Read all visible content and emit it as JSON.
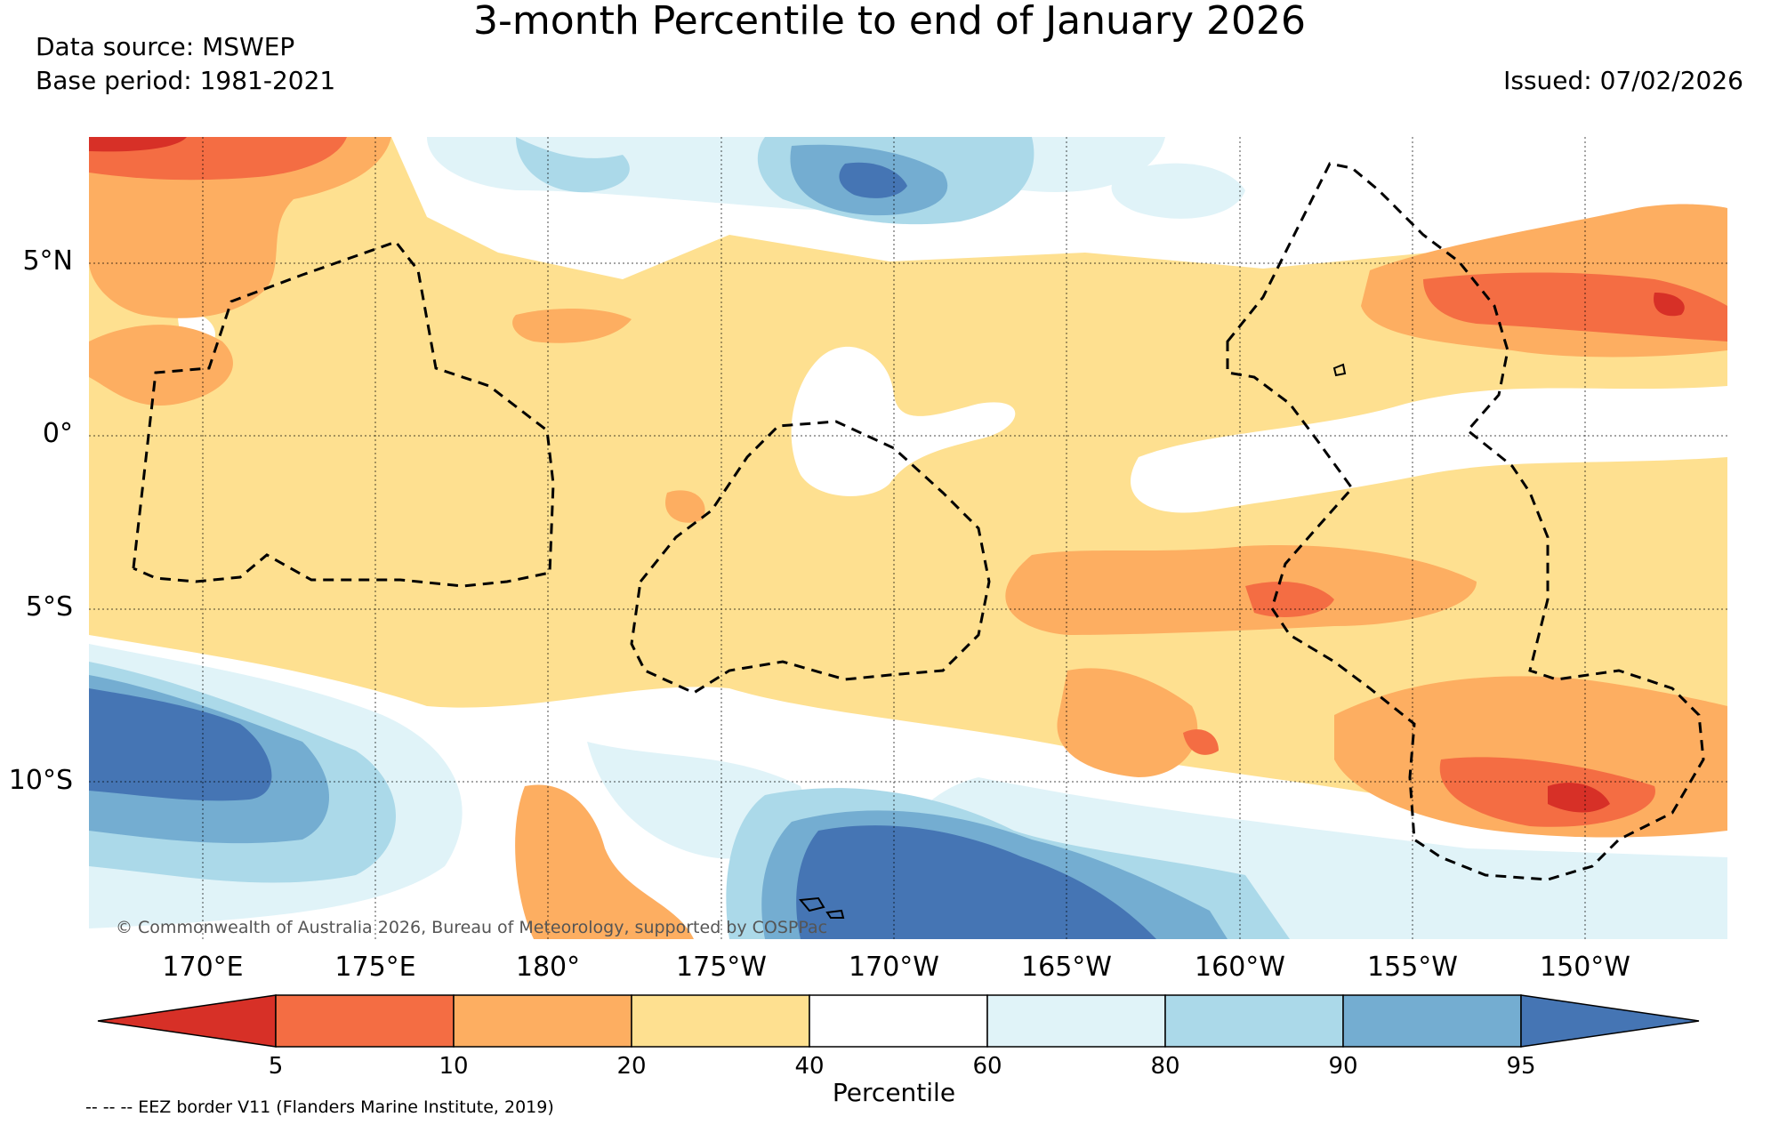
{
  "title": "3-month Percentile to end of January 2026",
  "data_source": "Data source: MSWEP",
  "base_period": "Base period: 1981-2021",
  "issued": "Issued: 07/02/2026",
  "lat_labels": [
    "5°N",
    "0°",
    "5°S",
    "10°S"
  ],
  "lon_labels": [
    "170°E",
    "175°E",
    "180°",
    "175°W",
    "170°W",
    "165°W",
    "160°W",
    "155°W",
    "150°W"
  ],
  "copyright": "© Commonwealth of Australia 2026, Bureau of Meteorology, supported by COSPPac",
  "colorbar": {
    "title": "Percentile",
    "ticks": [
      "5",
      "10",
      "20",
      "40",
      "60",
      "80",
      "90",
      "95"
    ],
    "colors": [
      "#d73027",
      "#f46d43",
      "#fdae61",
      "#fee090",
      "#ffffff",
      "#e0f3f8",
      "#abd9e9",
      "#74add1",
      "#4575b4"
    ]
  },
  "eez_note": "-- -- -- EEZ border V11 (Flanders Marine Institute, 2019)"
}
